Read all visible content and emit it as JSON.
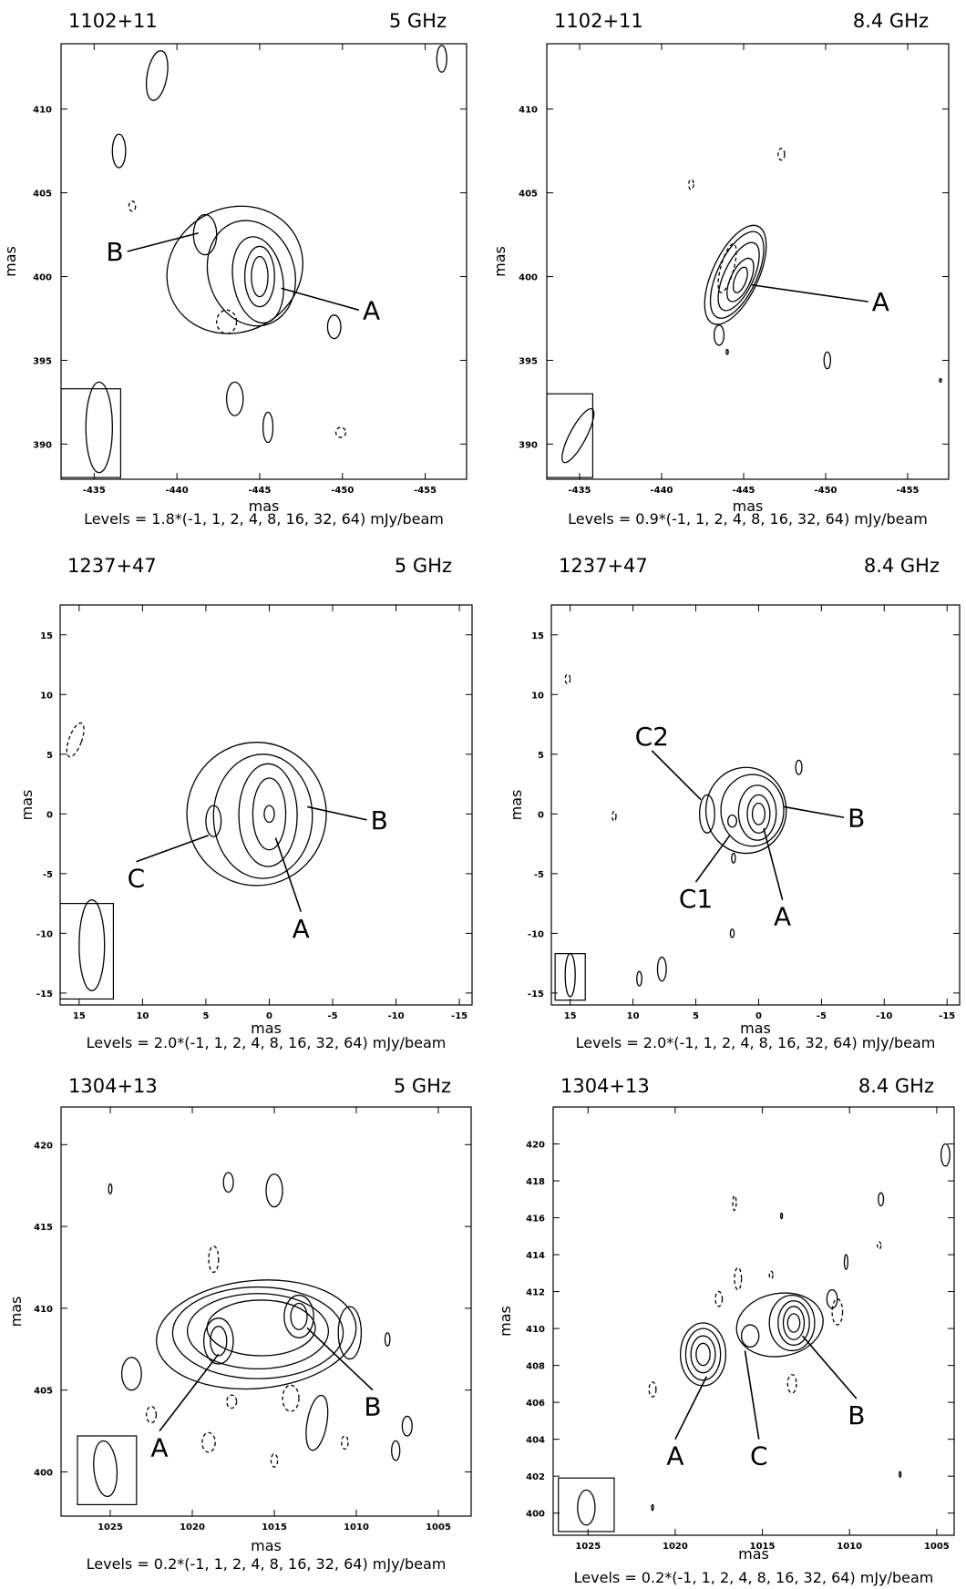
{
  "chart_data": [
    {
      "type": "contour",
      "source": "1102+11",
      "frequency": "5 GHz",
      "levels_text": "Levels = 1.8*(-1, 1, 2, 4, 8, 16, 32, 64) mJy/beam",
      "base_level_mjy_per_beam": 1.8,
      "level_multipliers": [
        -1,
        1,
        2,
        4,
        8,
        16,
        32,
        64
      ],
      "xlabel": "mas",
      "ylabel": "mas",
      "xlim": [
        -433,
        -457.5
      ],
      "ylim": [
        387.9,
        413.9
      ],
      "xticks": [
        -435,
        -440,
        -445,
        -450,
        -455
      ],
      "yticks": [
        390,
        395,
        400,
        405,
        410
      ],
      "components": [
        {
          "label": "B",
          "x": -441.5,
          "y": 402.5
        },
        {
          "label": "A",
          "x": -445.0,
          "y": 400.0
        }
      ]
    },
    {
      "type": "contour",
      "source": "1102+11",
      "frequency": "8.4 GHz",
      "levels_text": "Levels = 0.9*(-1, 1, 2, 4, 8, 16, 32, 64) mJy/beam",
      "base_level_mjy_per_beam": 0.9,
      "level_multipliers": [
        -1,
        1,
        2,
        4,
        8,
        16,
        32,
        64
      ],
      "xlabel": "mas",
      "ylabel": "mas",
      "xlim": [
        -433,
        -457.5
      ],
      "ylim": [
        387.9,
        413.9
      ],
      "xticks": [
        -435,
        -440,
        -445,
        -450,
        -455
      ],
      "yticks": [
        390,
        395,
        400,
        405,
        410
      ],
      "components": [
        {
          "label": "A",
          "x": -444.8,
          "y": 399.8
        }
      ]
    },
    {
      "type": "contour",
      "source": "1237+47",
      "frequency": "5 GHz",
      "levels_text": "Levels = 2.0*(-1, 1, 2, 4, 8, 16, 32, 64) mJy/beam",
      "base_level_mjy_per_beam": 2.0,
      "level_multipliers": [
        -1,
        1,
        2,
        4,
        8,
        16,
        32,
        64
      ],
      "xlabel": "mas",
      "ylabel": "mas",
      "xlim": [
        16.5,
        -16
      ],
      "ylim": [
        -16,
        17.5
      ],
      "xticks": [
        15,
        10,
        5,
        0,
        -5,
        -10,
        -15
      ],
      "yticks": [
        -15,
        -10,
        -5,
        0,
        5,
        10,
        15
      ],
      "components": [
        {
          "label": "C",
          "x": 3.8,
          "y": -0.6
        },
        {
          "label": "A",
          "x": 0.0,
          "y": 0.0
        },
        {
          "label": "B",
          "x": -3.0,
          "y": 0.6
        }
      ]
    },
    {
      "type": "contour",
      "source": "1237+47",
      "frequency": "8.4 GHz",
      "levels_text": "Levels = 2.0*(-1, 1, 2, 4, 8, 16, 32, 64) mJy/beam",
      "base_level_mjy_per_beam": 2.0,
      "level_multipliers": [
        -1,
        1,
        2,
        4,
        8,
        16,
        32,
        64
      ],
      "xlabel": "mas",
      "ylabel": "mas",
      "xlim": [
        16.5,
        -16
      ],
      "ylim": [
        -16,
        17.5
      ],
      "xticks": [
        15,
        10,
        5,
        0,
        -5,
        -10,
        -15
      ],
      "yticks": [
        -15,
        -10,
        -5,
        0,
        5,
        10,
        15
      ],
      "components": [
        {
          "label": "C2",
          "x": 4.0,
          "y": 0.0
        },
        {
          "label": "C1",
          "x": 2.0,
          "y": -0.8
        },
        {
          "label": "A",
          "x": 0.0,
          "y": 0.0
        },
        {
          "label": "B",
          "x": -2.0,
          "y": 0.6
        }
      ]
    },
    {
      "type": "contour",
      "source": "1304+13",
      "frequency": "5 GHz",
      "levels_text": "Levels = 0.2*(-1, 1, 2, 4, 8, 16, 32, 64) mJy/beam",
      "base_level_mjy_per_beam": 0.2,
      "level_multipliers": [
        -1,
        1,
        2,
        4,
        8,
        16,
        32,
        64
      ],
      "xlabel": "mas",
      "ylabel": "mas",
      "xlim": [
        1028,
        1003
      ],
      "ylim": [
        397.3,
        422.3
      ],
      "xticks": [
        1025,
        1020,
        1015,
        1010,
        1005
      ],
      "yticks": [
        400,
        405,
        410,
        415,
        420
      ],
      "components": [
        {
          "label": "A",
          "x": 1018.5,
          "y": 408.0
        },
        {
          "label": "B",
          "x": 1013.5,
          "y": 409.5
        }
      ]
    },
    {
      "type": "contour",
      "source": "1304+13",
      "frequency": "8.4 GHz",
      "levels_text": "Levels = 0.2*(-1, 1, 2, 4, 8, 16, 32, 64) mJy/beam",
      "base_level_mjy_per_beam": 0.2,
      "level_multipliers": [
        -1,
        1,
        2,
        4,
        8,
        16,
        32,
        64
      ],
      "xlabel": "mas",
      "ylabel": "mas",
      "xlim": [
        1027,
        1004
      ],
      "ylim": [
        398.8,
        422
      ],
      "xticks": [
        1025,
        1020,
        1015,
        1010,
        1005
      ],
      "yticks": [
        400,
        402,
        404,
        406,
        408,
        410,
        412,
        414,
        416,
        418,
        420
      ],
      "components": [
        {
          "label": "A",
          "x": 1018.5,
          "y": 408.5
        },
        {
          "label": "C",
          "x": 1016.0,
          "y": 409.5
        },
        {
          "label": "B",
          "x": 1013.2,
          "y": 410.3
        }
      ]
    }
  ]
}
